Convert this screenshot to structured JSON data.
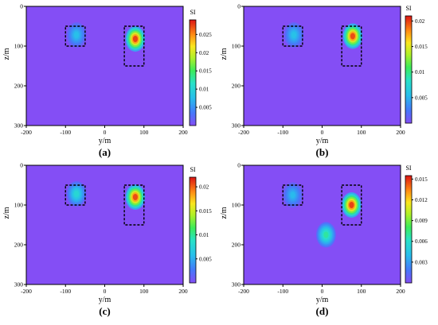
{
  "chart_data": [
    {
      "type": "heatmap",
      "panel_label": "(a)",
      "xlabel": "y/m",
      "ylabel": "z/m",
      "colorbar_label": "SI",
      "xlim": [
        -200,
        200
      ],
      "ylim": [
        300,
        0
      ],
      "xticks": [
        "-200",
        "-100",
        "0",
        "100",
        "200"
      ],
      "yticks": [
        "0",
        "100",
        "200",
        "300"
      ],
      "colorbar_range": [
        0,
        0.029
      ],
      "colorbar_ticks": [
        "0.005",
        "0.01",
        "0.015",
        "0.02",
        "0.025"
      ],
      "anomalies": [
        {
          "y": -72,
          "z": 72,
          "peak_si": 0.008
        },
        {
          "y": 78,
          "z": 82,
          "peak_si": 0.028
        }
      ],
      "dashed_boxes": [
        {
          "y_range": [
            -100,
            -50
          ],
          "z_range": [
            50,
            100
          ]
        },
        {
          "y_range": [
            50,
            100
          ],
          "z_range": [
            50,
            150
          ]
        }
      ]
    },
    {
      "type": "heatmap",
      "panel_label": "(b)",
      "xlabel": "y/m",
      "ylabel": "z/m",
      "colorbar_label": "SI",
      "xlim": [
        -200,
        200
      ],
      "ylim": [
        300,
        0
      ],
      "xticks": [
        "-200",
        "-100",
        "0",
        "100",
        "200"
      ],
      "yticks": [
        "0",
        "100",
        "200",
        "300"
      ],
      "colorbar_range": [
        0,
        0.021
      ],
      "colorbar_ticks": [
        "0.005",
        "0.01",
        "0.015",
        "0.02"
      ],
      "anomalies": [
        {
          "y": -72,
          "z": 72,
          "peak_si": 0.006
        },
        {
          "y": 78,
          "z": 75,
          "peak_si": 0.02
        }
      ],
      "dashed_boxes": [
        {
          "y_range": [
            -100,
            -50
          ],
          "z_range": [
            50,
            100
          ]
        },
        {
          "y_range": [
            50,
            100
          ],
          "z_range": [
            50,
            150
          ]
        }
      ]
    },
    {
      "type": "heatmap",
      "panel_label": "(c)",
      "xlabel": "y/m",
      "ylabel": "z/m",
      "colorbar_label": "SI",
      "xlim": [
        -200,
        200
      ],
      "ylim": [
        300,
        0
      ],
      "xticks": [
        "-200",
        "-100",
        "0",
        "100",
        "200"
      ],
      "yticks": [
        "0",
        "100",
        "200",
        "300"
      ],
      "colorbar_range": [
        0,
        0.022
      ],
      "colorbar_ticks": [
        "0.005",
        "0.01",
        "0.015",
        "0.02"
      ],
      "anomalies": [
        {
          "y": -72,
          "z": 72,
          "peak_si": 0.008
        },
        {
          "y": 78,
          "z": 80,
          "peak_si": 0.021
        }
      ],
      "dashed_boxes": [
        {
          "y_range": [
            -100,
            -50
          ],
          "z_range": [
            50,
            100
          ]
        },
        {
          "y_range": [
            50,
            100
          ],
          "z_range": [
            50,
            150
          ]
        }
      ]
    },
    {
      "type": "heatmap",
      "panel_label": "(d)",
      "xlabel": "y/m",
      "ylabel": "z/m",
      "colorbar_label": "SI",
      "xlim": [
        -200,
        200
      ],
      "ylim": [
        300,
        0
      ],
      "xticks": [
        "-200",
        "-100",
        "0",
        "100",
        "200"
      ],
      "yticks": [
        "0",
        "100",
        "200",
        "300"
      ],
      "colorbar_range": [
        0,
        0.0155
      ],
      "colorbar_ticks": [
        "0.003",
        "0.006",
        "0.009",
        "0.012",
        "0.015"
      ],
      "anomalies": [
        {
          "y": -75,
          "z": 75,
          "peak_si": 0.004
        },
        {
          "y": 75,
          "z": 100,
          "peak_si": 0.015
        },
        {
          "y": 10,
          "z": 175,
          "peak_si": 0.007
        }
      ],
      "dashed_boxes": [
        {
          "y_range": [
            -100,
            -50
          ],
          "z_range": [
            50,
            100
          ]
        },
        {
          "y_range": [
            50,
            100
          ],
          "z_range": [
            50,
            150
          ]
        }
      ]
    }
  ]
}
